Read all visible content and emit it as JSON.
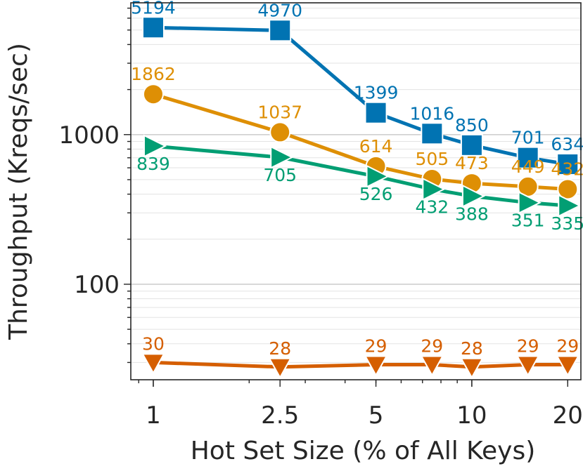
{
  "chart_data": {
    "type": "line",
    "xlabel": "Hot Set Size (% of All Keys)",
    "ylabel": "Throughput (Kreqs/sec)",
    "x_scale": "log",
    "y_scale": "log",
    "x": [
      1,
      2.5,
      5,
      7.5,
      10,
      15,
      20
    ],
    "x_ticks": [
      1,
      2.5,
      5,
      10,
      20
    ],
    "x_tick_labels": [
      "1",
      "2.5",
      "5",
      "10",
      "20"
    ],
    "y_ticks": [
      100,
      1000
    ],
    "y_tick_labels": [
      "100",
      "1000"
    ],
    "xlim": [
      0.85,
      22
    ],
    "ylim": [
      23,
      7600
    ],
    "grid": true,
    "legend": "none",
    "series": [
      {
        "color": "#0173b2",
        "marker": "square",
        "label_position": "above",
        "values": [
          5194,
          4970,
          1399,
          1016,
          850,
          701,
          634
        ],
        "labels": [
          "5194",
          "4970",
          "1399",
          "1016",
          "850",
          "701",
          "634"
        ]
      },
      {
        "color": "#de8f05",
        "marker": "circle",
        "label_position": "above",
        "values": [
          1862,
          1037,
          614,
          505,
          473,
          449,
          432
        ],
        "labels": [
          "1862",
          "1037",
          "614",
          "505",
          "473",
          "449",
          "432"
        ]
      },
      {
        "color": "#029e73",
        "marker": "triangle-right",
        "label_position": "below",
        "values": [
          839,
          705,
          526,
          432,
          388,
          351,
          335
        ],
        "labels": [
          "839",
          "705",
          "526",
          "432",
          "388",
          "351",
          "335"
        ]
      },
      {
        "color": "#d55e00",
        "marker": "triangle-down",
        "label_position": "above",
        "values": [
          30,
          28,
          29,
          29,
          28,
          29,
          29
        ],
        "labels": [
          "30",
          "28",
          "29",
          "29",
          "28",
          "29",
          "29"
        ]
      }
    ]
  }
}
